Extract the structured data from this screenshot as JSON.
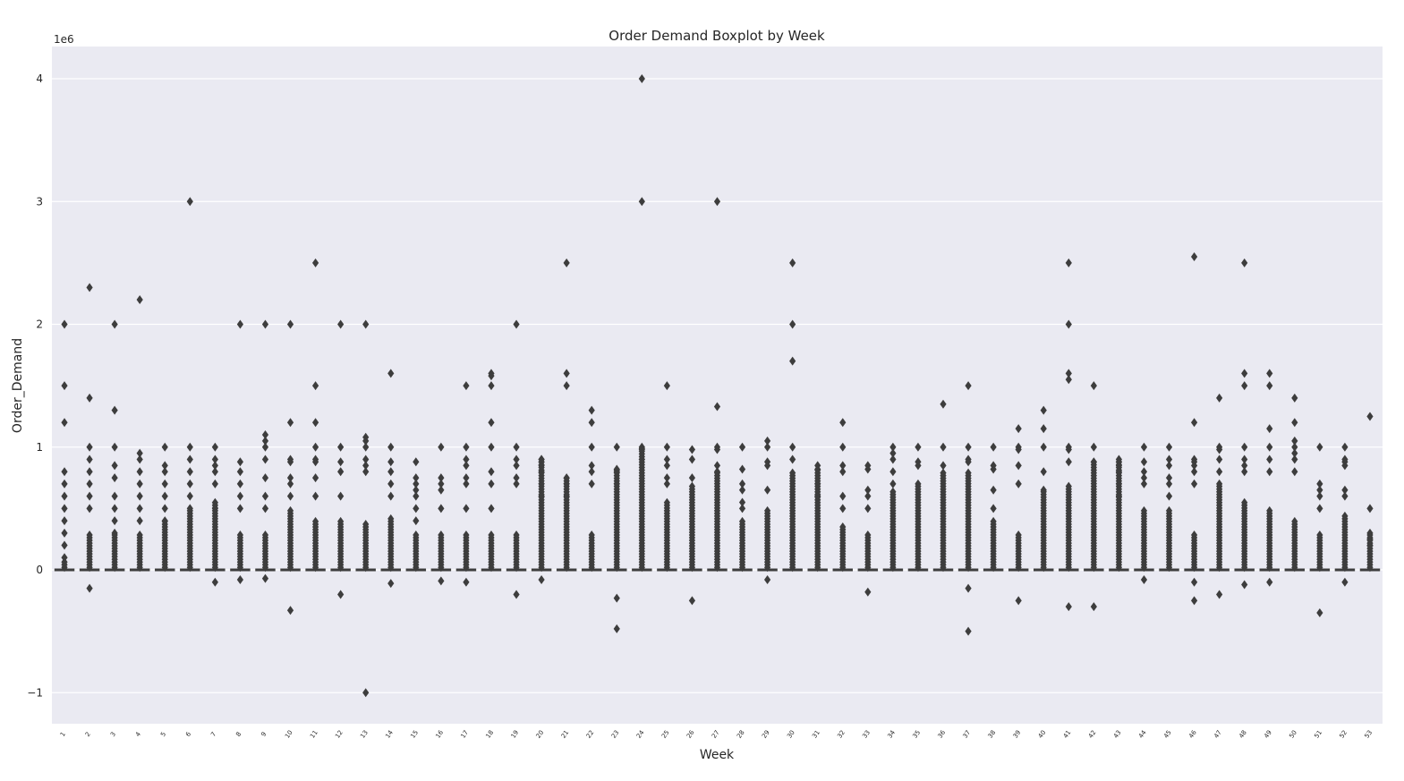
{
  "chart_data": {
    "type": "box",
    "title": "Order Demand Boxplot by Week",
    "xlabel": "Week",
    "ylabel": "Order_Demand",
    "y_offset_label": "1e6",
    "ylim": [
      -1250000,
      4250000
    ],
    "yticks": [
      -1000000,
      0,
      1000000,
      2000000,
      3000000,
      4000000
    ],
    "ytick_labels": [
      "−1",
      "0",
      "1",
      "2",
      "3",
      "4"
    ],
    "grid": true,
    "categories": [
      "1",
      "2",
      "3",
      "4",
      "5",
      "6",
      "7",
      "8",
      "9",
      "10",
      "11",
      "12",
      "13",
      "14",
      "15",
      "16",
      "17",
      "18",
      "19",
      "20",
      "21",
      "22",
      "23",
      "24",
      "25",
      "26",
      "27",
      "28",
      "29",
      "30",
      "31",
      "32",
      "33",
      "34",
      "35",
      "36",
      "37",
      "38",
      "39",
      "40",
      "41",
      "42",
      "43",
      "44",
      "45",
      "46",
      "47",
      "48",
      "49",
      "50",
      "51",
      "52",
      "53"
    ],
    "box_median": 0,
    "outliers_low_band_max": [
      80,
      300,
      300,
      300,
      400,
      500,
      550,
      300,
      300,
      500,
      400,
      400,
      380,
      420,
      300,
      300,
      300,
      300,
      300,
      900,
      750,
      300,
      820,
      1000,
      550,
      700,
      800,
      400,
      500,
      800,
      820,
      350,
      300,
      650,
      700,
      800,
      800,
      400,
      300,
      650,
      700,
      880,
      880,
      500,
      500,
      300,
      700,
      550,
      500,
      400,
      300,
      450,
      300
    ],
    "outliers": [
      [
        2000000,
        1500000,
        1200000,
        800000,
        700000,
        600000,
        500000,
        400000,
        300000,
        200000,
        100000
      ],
      [
        2300000,
        1400000,
        1000000,
        900000,
        800000,
        700000,
        600000,
        500000,
        -150000
      ],
      [
        2000000,
        1300000,
        1000000,
        850000,
        750000,
        600000,
        500000,
        400000,
        300000
      ],
      [
        2200000,
        950000,
        900000,
        800000,
        700000,
        600000,
        500000,
        400000
      ],
      [
        1000000,
        850000,
        800000,
        700000,
        600000,
        500000,
        400000
      ],
      [
        3000000,
        1000000,
        900000,
        800000,
        700000,
        600000,
        500000
      ],
      [
        1000000,
        900000,
        850000,
        800000,
        700000,
        500000,
        -100000
      ],
      [
        2000000,
        880000,
        800000,
        700000,
        600000,
        500000,
        -80000
      ],
      [
        2000000,
        1100000,
        1050000,
        1000000,
        900000,
        750000,
        600000,
        500000,
        -70000
      ],
      [
        2000000,
        1200000,
        900000,
        880000,
        750000,
        700000,
        600000,
        -330000
      ],
      [
        2500000,
        1500000,
        1200000,
        1000000,
        900000,
        880000,
        750000,
        600000
      ],
      [
        2000000,
        1000000,
        880000,
        800000,
        600000,
        -200000
      ],
      [
        2000000,
        1080000,
        1050000,
        1000000,
        900000,
        850000,
        800000,
        -1000000
      ],
      [
        1600000,
        1000000,
        880000,
        800000,
        700000,
        600000,
        -110000
      ],
      [
        880000,
        750000,
        700000,
        650000,
        600000,
        500000,
        400000
      ],
      [
        1000000,
        750000,
        700000,
        650000,
        500000,
        -90000
      ],
      [
        1500000,
        1000000,
        900000,
        850000,
        750000,
        700000,
        500000,
        -100000
      ],
      [
        1600000,
        1580000,
        1500000,
        1200000,
        1000000,
        800000,
        700000,
        500000
      ],
      [
        2000000,
        1000000,
        900000,
        850000,
        750000,
        700000,
        -200000
      ],
      [
        900000,
        880000,
        850000,
        800000,
        700000,
        600000,
        -80000
      ],
      [
        2500000,
        1600000,
        1500000,
        750000,
        700000,
        600000
      ],
      [
        1300000,
        1200000,
        1000000,
        850000,
        800000,
        700000
      ],
      [
        1000000,
        820000,
        800000,
        700000,
        -230000,
        -480000
      ],
      [
        4000000,
        3000000,
        1000000,
        980000,
        900000
      ],
      [
        1500000,
        1000000,
        900000,
        850000,
        750000,
        700000
      ],
      [
        980000,
        900000,
        750000,
        -250000
      ],
      [
        3000000,
        1330000,
        1000000,
        980000,
        850000,
        800000
      ],
      [
        1000000,
        820000,
        700000,
        650000,
        550000,
        500000
      ],
      [
        1050000,
        1000000,
        880000,
        850000,
        650000,
        -80000
      ],
      [
        2500000,
        2000000,
        1700000,
        1000000,
        900000
      ],
      [
        850000,
        820000,
        700000,
        600000
      ],
      [
        1200000,
        1000000,
        850000,
        800000,
        600000,
        500000
      ],
      [
        850000,
        820000,
        650000,
        600000,
        500000,
        -180000
      ],
      [
        1000000,
        950000,
        900000,
        800000,
        700000
      ],
      [
        1000000,
        880000,
        850000,
        700000
      ],
      [
        1350000,
        1000000,
        850000
      ],
      [
        1500000,
        1000000,
        900000,
        880000,
        -150000,
        -500000
      ],
      [
        1000000,
        850000,
        820000,
        650000,
        500000
      ],
      [
        1150000,
        1000000,
        980000,
        850000,
        700000,
        -250000
      ],
      [
        1300000,
        1150000,
        1000000,
        800000,
        650000
      ],
      [
        2500000,
        2000000,
        1600000,
        1550000,
        1000000,
        980000,
        880000,
        -300000
      ],
      [
        1500000,
        1000000,
        880000,
        -300000
      ],
      [
        900000,
        880000,
        850000,
        800000,
        700000,
        600000
      ],
      [
        1000000,
        880000,
        800000,
        750000,
        700000,
        -80000
      ],
      [
        1000000,
        900000,
        850000,
        750000,
        700000,
        600000
      ],
      [
        2550000,
        1200000,
        900000,
        880000,
        850000,
        800000,
        700000,
        -100000,
        -250000
      ],
      [
        1400000,
        1000000,
        980000,
        900000,
        800000,
        700000,
        -200000
      ],
      [
        2500000,
        1600000,
        1500000,
        1000000,
        900000,
        850000,
        800000,
        -120000
      ],
      [
        1600000,
        1500000,
        1150000,
        1000000,
        900000,
        800000,
        -100000
      ],
      [
        1400000,
        1200000,
        1050000,
        1000000,
        950000,
        900000,
        800000
      ],
      [
        1000000,
        700000,
        650000,
        600000,
        500000,
        -350000
      ],
      [
        1000000,
        900000,
        880000,
        850000,
        650000,
        600000,
        -100000
      ],
      [
        1250000,
        500000,
        300000,
        250000,
        200000
      ]
    ]
  }
}
